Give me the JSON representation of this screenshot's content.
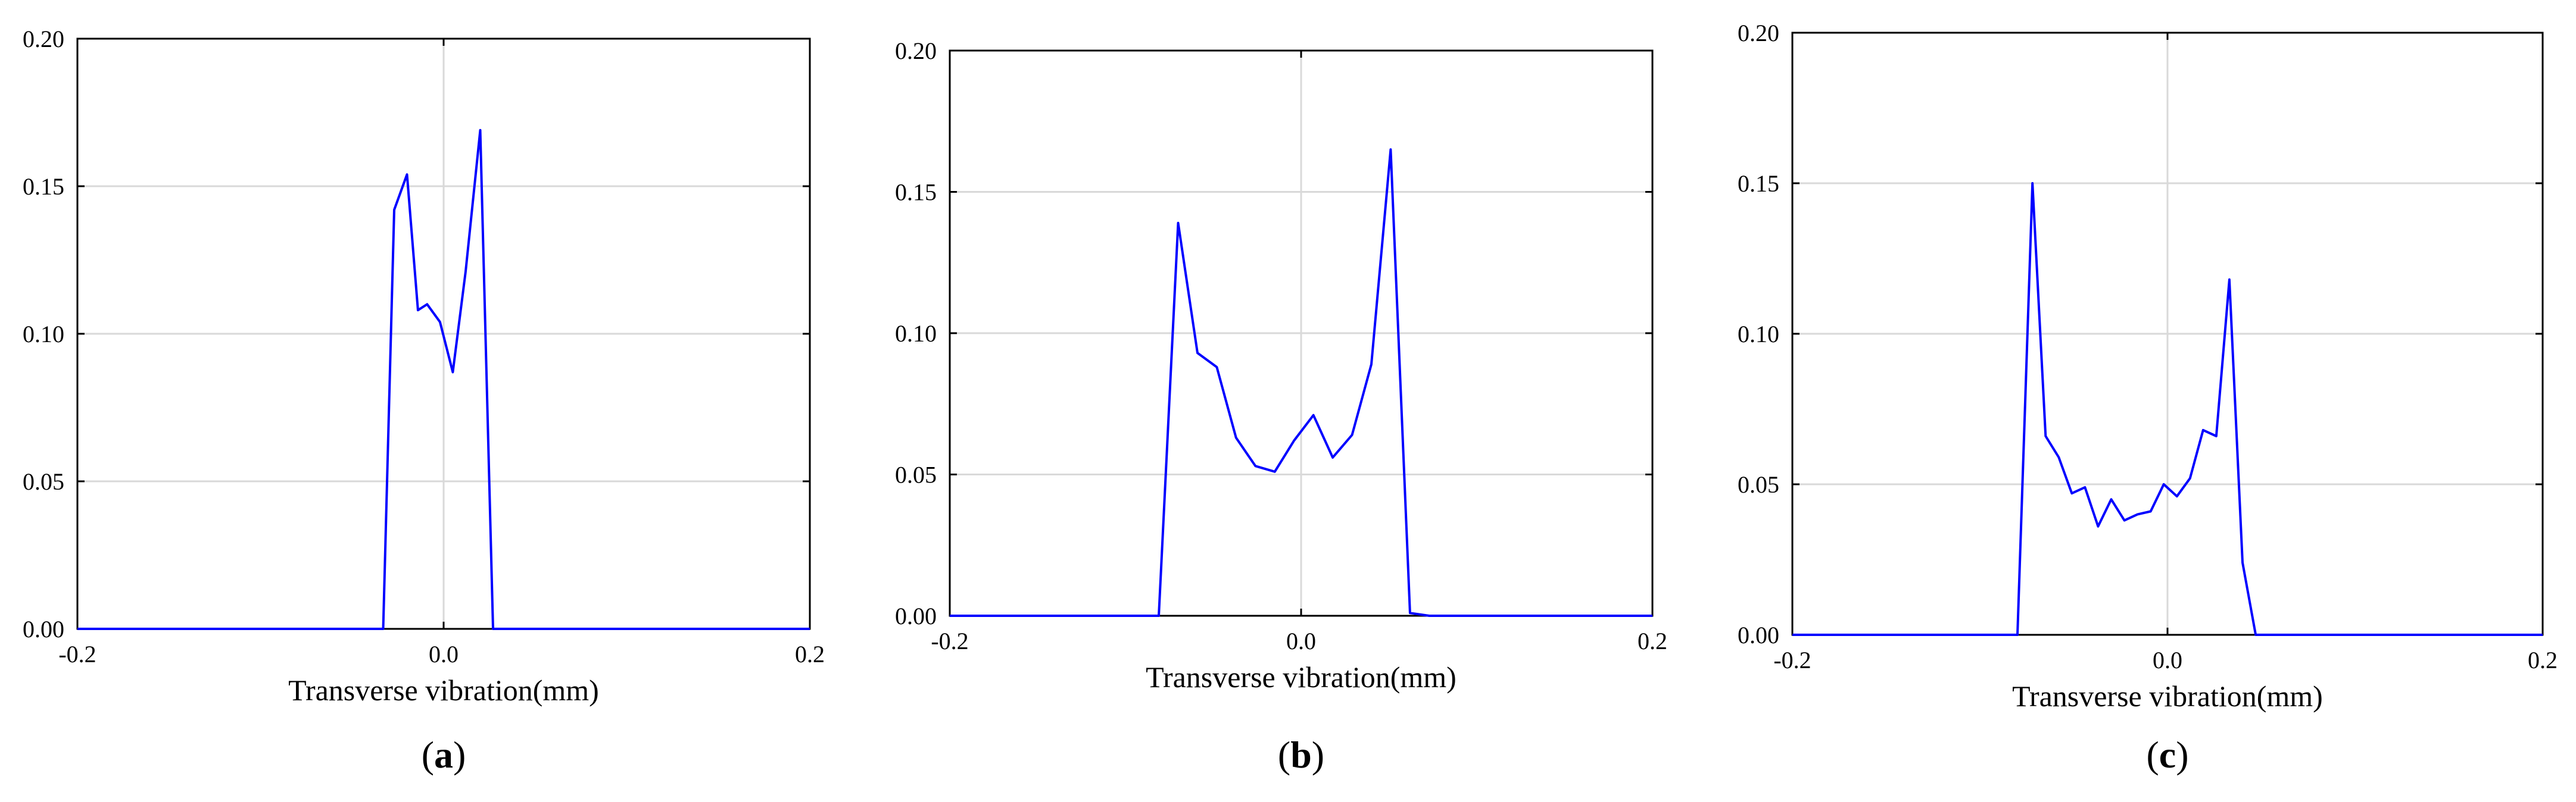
{
  "colors": {
    "series": "#0000ff",
    "grid": "#d9d9d9",
    "axis": "#000000"
  },
  "chart_data": [
    {
      "type": "line",
      "panel_label": "a",
      "xlabel": "Transverse vibration(mm)",
      "ylabel": "",
      "xlim": [
        -0.2,
        0.2
      ],
      "ylim": [
        0,
        0.2
      ],
      "xticks": [
        -0.2,
        0.0,
        0.2
      ],
      "xtick_labels": [
        "-0.2",
        "0.0",
        "0.2"
      ],
      "yticks": [
        0,
        0.05,
        0.1,
        0.15,
        0.2
      ],
      "ytick_labels": [
        "0.00",
        "0.05",
        "0.10",
        "0.15",
        "0.20"
      ],
      "grid": true,
      "series": [
        {
          "x": [
            -0.2,
            -0.033,
            -0.027,
            -0.02,
            -0.014,
            -0.009,
            -0.002,
            0.005,
            0.012,
            0.02,
            0.027,
            0.2
          ],
          "y": [
            0,
            0,
            0.142,
            0.154,
            0.108,
            0.11,
            0.104,
            0.087,
            0.121,
            0.169,
            0,
            0
          ]
        }
      ]
    },
    {
      "type": "line",
      "panel_label": "b",
      "xlabel": "Transverse vibration(mm)",
      "ylabel": "",
      "xlim": [
        -0.2,
        0.2
      ],
      "ylim": [
        0,
        0.2
      ],
      "xticks": [
        -0.2,
        0.0,
        0.2
      ],
      "xtick_labels": [
        "-0.2",
        "0.0",
        "0.2"
      ],
      "yticks": [
        0,
        0.05,
        0.1,
        0.15,
        0.2
      ],
      "ytick_labels": [
        "0.00",
        "0.05",
        "0.10",
        "0.15",
        "0.20"
      ],
      "grid": true,
      "series": [
        {
          "x": [
            -0.2,
            -0.081,
            -0.07,
            -0.059,
            -0.048,
            -0.037,
            -0.026,
            -0.015,
            -0.004,
            0.007,
            0.018,
            0.029,
            0.04,
            0.051,
            0.062,
            0.073,
            0.08,
            0.2
          ],
          "y": [
            0,
            0,
            0.139,
            0.093,
            0.088,
            0.063,
            0.053,
            0.051,
            0.062,
            0.071,
            0.056,
            0.064,
            0.089,
            0.165,
            0.001,
            0,
            0,
            0
          ]
        }
      ]
    },
    {
      "type": "line",
      "panel_label": "c",
      "xlabel": "Transverse vibration(mm)",
      "ylabel": "",
      "xlim": [
        -0.2,
        0.2
      ],
      "ylim": [
        0,
        0.2
      ],
      "xticks": [
        -0.2,
        0.0,
        0.2
      ],
      "xtick_labels": [
        "-0.2",
        "0.0",
        "0.2"
      ],
      "yticks": [
        0,
        0.05,
        0.1,
        0.15,
        0.2
      ],
      "ytick_labels": [
        "0.00",
        "0.05",
        "0.10",
        "0.15",
        "0.20"
      ],
      "grid": true,
      "series": [
        {
          "x": [
            -0.2,
            -0.08,
            -0.072,
            -0.065,
            -0.058,
            -0.051,
            -0.044,
            -0.037,
            -0.03,
            -0.023,
            -0.016,
            -0.009,
            -0.002,
            0.005,
            0.012,
            0.019,
            0.026,
            0.033,
            0.04,
            0.047,
            0.054,
            0.061,
            0.068,
            0.075,
            0.2
          ],
          "y": [
            0,
            0,
            0.15,
            0.066,
            0.059,
            0.047,
            0.049,
            0.036,
            0.045,
            0.038,
            0.04,
            0.041,
            0.05,
            0.046,
            0.052,
            0.068,
            0.066,
            0.118,
            0.024,
            0,
            0,
            0,
            0,
            0,
            0
          ]
        }
      ]
    }
  ]
}
